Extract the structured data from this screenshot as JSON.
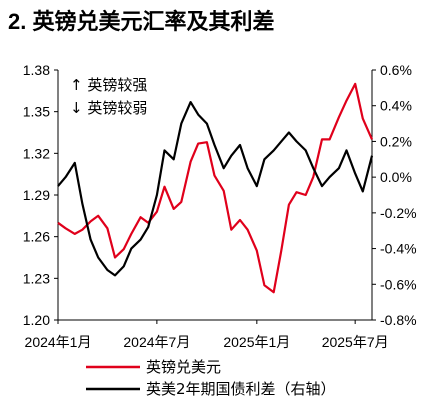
{
  "chart_data": {
    "type": "line",
    "title": "2. 英镑兑美元汇率及其利差",
    "x_tick_labels": [
      "2024年1月",
      "2024年7月",
      "2025年1月",
      "2025年7月"
    ],
    "x_range": [
      "2024-01",
      "2025-08"
    ],
    "left_axis": {
      "range": [
        1.2,
        1.38
      ],
      "ticks": [
        "1.38",
        "1.35",
        "1.32",
        "1.29",
        "1.26",
        "1.23",
        "1.20"
      ]
    },
    "right_axis": {
      "unit": "%",
      "range": [
        -0.8,
        0.6
      ],
      "ticks": [
        "0.6%",
        "0.4%",
        "0.2%",
        "0.0%",
        "-0.2%",
        "-0.4%",
        "-0.6%",
        "-0.8%"
      ]
    },
    "annotations": [
      "↑ 英镑较强",
      "↓ 英镑较弱"
    ],
    "grid": false,
    "legend_position": "bottom",
    "series": [
      {
        "name": "英镑兑美元",
        "axis": "left",
        "color": "#e0001b",
        "x": [
          "2024-01-01",
          "2024-01-15",
          "2024-02-01",
          "2024-02-15",
          "2024-03-01",
          "2024-03-15",
          "2024-04-01",
          "2024-04-15",
          "2024-05-01",
          "2024-05-15",
          "2024-06-01",
          "2024-06-15",
          "2024-07-01",
          "2024-07-15",
          "2024-08-01",
          "2024-08-15",
          "2024-09-01",
          "2024-09-15",
          "2024-10-01",
          "2024-10-15",
          "2024-11-01",
          "2024-11-15",
          "2024-12-01",
          "2024-12-15",
          "2025-01-01",
          "2025-01-15",
          "2025-02-01",
          "2025-02-15",
          "2025-03-01",
          "2025-03-15",
          "2025-04-01",
          "2025-04-15",
          "2025-05-01",
          "2025-05-15",
          "2025-06-01",
          "2025-06-15",
          "2025-07-01",
          "2025-07-15",
          "2025-08-01"
        ],
        "values": [
          1.27,
          1.266,
          1.262,
          1.265,
          1.271,
          1.275,
          1.266,
          1.245,
          1.251,
          1.262,
          1.274,
          1.27,
          1.278,
          1.296,
          1.28,
          1.285,
          1.314,
          1.327,
          1.328,
          1.304,
          1.293,
          1.265,
          1.272,
          1.265,
          1.25,
          1.225,
          1.22,
          1.25,
          1.283,
          1.292,
          1.29,
          1.303,
          1.33,
          1.33,
          1.346,
          1.358,
          1.37,
          1.345,
          1.33
        ]
      },
      {
        "name": "英美2年期国债利差（右轴）",
        "axis": "right",
        "color": "#000000",
        "x": [
          "2024-01-01",
          "2024-01-15",
          "2024-02-01",
          "2024-02-15",
          "2024-03-01",
          "2024-03-15",
          "2024-04-01",
          "2024-04-15",
          "2024-05-01",
          "2024-05-15",
          "2024-06-01",
          "2024-06-15",
          "2024-07-01",
          "2024-07-15",
          "2024-08-01",
          "2024-08-15",
          "2024-09-01",
          "2024-09-15",
          "2024-10-01",
          "2024-10-15",
          "2024-11-01",
          "2024-11-15",
          "2024-12-01",
          "2024-12-15",
          "2025-01-01",
          "2025-01-15",
          "2025-02-01",
          "2025-02-15",
          "2025-03-01",
          "2025-03-15",
          "2025-04-01",
          "2025-04-15",
          "2025-05-01",
          "2025-05-15",
          "2025-06-01",
          "2025-06-15",
          "2025-07-01",
          "2025-07-15",
          "2025-08-01"
        ],
        "values": [
          -0.05,
          0.0,
          0.08,
          -0.15,
          -0.35,
          -0.45,
          -0.52,
          -0.55,
          -0.5,
          -0.4,
          -0.35,
          -0.28,
          -0.1,
          0.15,
          0.1,
          0.3,
          0.42,
          0.35,
          0.3,
          0.18,
          0.05,
          0.12,
          0.18,
          0.05,
          -0.05,
          0.1,
          0.15,
          0.2,
          0.25,
          0.2,
          0.15,
          0.05,
          -0.05,
          0.0,
          0.05,
          0.15,
          0.02,
          -0.08,
          0.12
        ]
      }
    ]
  }
}
